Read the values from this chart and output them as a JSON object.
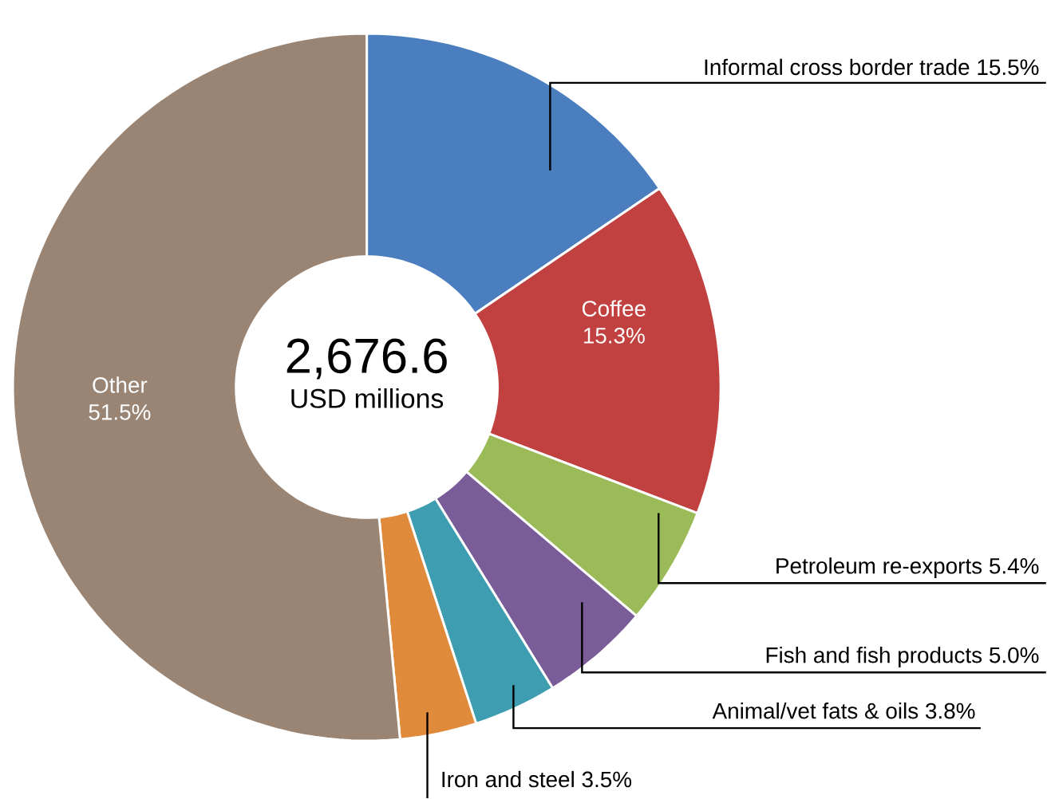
{
  "chart_data": {
    "type": "donut",
    "title": "2,676.6",
    "subtitle": "USD millions",
    "categories": [
      "Informal cross border trade",
      "Coffee",
      "Petroleum re-exports",
      "Fish and fish products",
      "Animal/vet fats & oils",
      "Iron and steel",
      "Other"
    ],
    "values": [
      15.5,
      15.3,
      5.4,
      5.0,
      3.8,
      3.5,
      51.5
    ],
    "value_labels": [
      "15.5%",
      "15.3%",
      "5.4%",
      "5.0%",
      "3.8%",
      "3.5%",
      "51.5%"
    ],
    "colors": [
      "#4a7ebf",
      "#c0413f",
      "#9bbb59",
      "#7a5c99",
      "#3e9db0",
      "#e08a3c",
      "#9a8574"
    ]
  }
}
